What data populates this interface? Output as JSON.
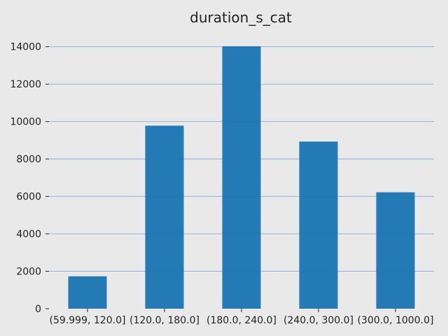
{
  "chart_data": {
    "type": "bar",
    "title": "duration_s_cat",
    "xlabel": "",
    "ylabel": "",
    "categories": [
      "(59.999, 120.0]",
      "(120.0, 180.0]",
      "(180.0, 240.0]",
      "(240.0, 300.0]",
      "(300.0, 1000.0]"
    ],
    "values": [
      1730,
      9780,
      14020,
      8930,
      6220
    ],
    "ylim": [
      0,
      14700
    ],
    "yticks": [
      0,
      2000,
      4000,
      6000,
      8000,
      10000,
      12000,
      14000
    ],
    "grid": true,
    "grid_axis": "y",
    "legend": "none"
  },
  "colors": {
    "bar": "#1f77b4",
    "background": "#e9e9e9",
    "grid": "#8eaad7",
    "text": "#222222"
  }
}
